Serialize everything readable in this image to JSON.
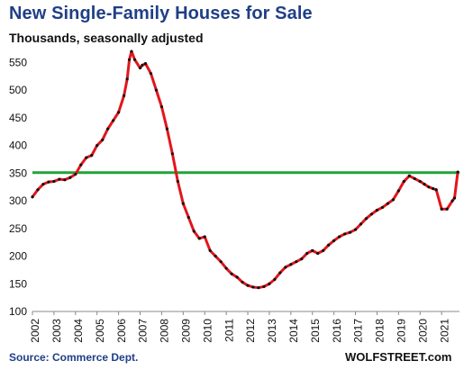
{
  "chart_data": {
    "type": "line",
    "title": "New Single-Family Houses for Sale",
    "subtitle": "Thousands, seasonally adjusted",
    "source": "Source: Commerce Dept.",
    "brand": "WOLFSTREET.com",
    "xlabel": "",
    "ylabel": "",
    "ylim": [
      100,
      575
    ],
    "xlim": [
      2002,
      2021.83
    ],
    "yticks": [
      100,
      150,
      200,
      250,
      300,
      350,
      400,
      450,
      500,
      550
    ],
    "xticks": [
      "2002",
      "2003",
      "2004",
      "2005",
      "2006",
      "2007",
      "2008",
      "2009",
      "2010",
      "2011",
      "2012",
      "2013",
      "2014",
      "2015",
      "2016",
      "2017",
      "2018",
      "2019",
      "2020",
      "2021"
    ],
    "grid": false,
    "colors": {
      "series": "#e3151b",
      "markers": "#111111",
      "reference": "#22a33a",
      "title": "#1f3f86"
    },
    "reference_line": {
      "y": 351
    },
    "series": [
      {
        "x": [
          2002.0,
          2002.25,
          2002.5,
          2002.75,
          2003.0,
          2003.25,
          2003.5,
          2003.75,
          2004.0,
          2004.25,
          2004.5,
          2004.75,
          2005.0,
          2005.25,
          2005.5,
          2005.75,
          2006.0,
          2006.25,
          2006.4,
          2006.5,
          2006.6,
          2006.75,
          2007.0,
          2007.1,
          2007.25,
          2007.5,
          2007.75,
          2008.0,
          2008.25,
          2008.5,
          2008.75,
          2009.0,
          2009.25,
          2009.5,
          2009.75,
          2010.0,
          2010.25,
          2010.5,
          2010.75,
          2011.0,
          2011.25,
          2011.5,
          2011.75,
          2012.0,
          2012.25,
          2012.5,
          2012.75,
          2013.0,
          2013.25,
          2013.5,
          2013.75,
          2014.0,
          2014.25,
          2014.5,
          2014.75,
          2015.0,
          2015.25,
          2015.5,
          2015.75,
          2016.0,
          2016.25,
          2016.5,
          2016.75,
          2017.0,
          2017.25,
          2017.5,
          2017.75,
          2018.0,
          2018.25,
          2018.5,
          2018.75,
          2019.0,
          2019.25,
          2019.5,
          2019.75,
          2020.0,
          2020.2,
          2020.4,
          2020.6,
          2020.75,
          2021.0,
          2021.25,
          2021.5,
          2021.6,
          2021.75
        ],
        "y": [
          307,
          320,
          330,
          334,
          335,
          339,
          338,
          342,
          348,
          365,
          378,
          382,
          400,
          410,
          430,
          445,
          460,
          490,
          520,
          555,
          570,
          555,
          540,
          545,
          548,
          530,
          500,
          470,
          430,
          385,
          335,
          295,
          270,
          245,
          232,
          235,
          210,
          200,
          190,
          178,
          168,
          162,
          153,
          147,
          144,
          143,
          145,
          150,
          158,
          170,
          180,
          185,
          190,
          195,
          205,
          210,
          205,
          210,
          220,
          228,
          235,
          240,
          243,
          248,
          258,
          268,
          276,
          283,
          288,
          295,
          302,
          318,
          335,
          345,
          340,
          335,
          330,
          325,
          322,
          320,
          285,
          285,
          300,
          305,
          352
        ]
      }
    ]
  }
}
